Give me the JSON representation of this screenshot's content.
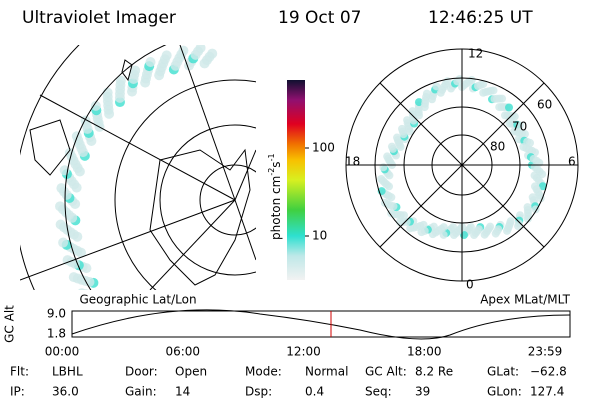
{
  "header": {
    "title": "Ultraviolet Imager",
    "date": "19 Oct 07",
    "time": "12:46:25 UT"
  },
  "left_panel": {
    "label": "Geographic Lat/Lon"
  },
  "colorbar": {
    "unit_parts": [
      "photon cm",
      "-2",
      "s",
      "-1"
    ],
    "tick_labels": [
      "100",
      "10"
    ]
  },
  "right_panel": {
    "label": "Apex MLat/MLT",
    "mlt_labels": [
      "12",
      "18",
      "6",
      "0"
    ],
    "lat_labels": [
      "60",
      "70",
      "80"
    ]
  },
  "altitude": {
    "label": "GC Alt",
    "y_labels": [
      "9.0",
      "1.8"
    ],
    "x_labels": [
      "00:00",
      "06:00",
      "12:00",
      "18:00",
      "23:59"
    ]
  },
  "footer": {
    "rows": [
      [
        [
          "Flt:",
          "LBHL"
        ],
        [
          "Door:",
          "Open"
        ],
        [
          "Mode:",
          "Normal"
        ],
        [
          "GC Alt:",
          "8.2 Re"
        ],
        [
          "GLat:",
          "−62.8"
        ]
      ],
      [
        [
          "IP:",
          "36.0"
        ],
        [
          "Gain:",
          "14"
        ],
        [
          "Dsp:",
          "0.4"
        ],
        [
          "Seq:",
          "39"
        ],
        [
          "GLon:",
          "127.4"
        ]
      ]
    ]
  }
}
